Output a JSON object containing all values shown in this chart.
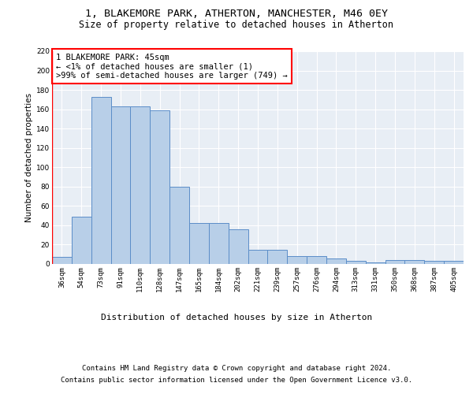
{
  "title1": "1, BLAKEMORE PARK, ATHERTON, MANCHESTER, M46 0EY",
  "title2": "Size of property relative to detached houses in Atherton",
  "xlabel": "Distribution of detached houses by size in Atherton",
  "ylabel": "Number of detached properties",
  "footnote1": "Contains HM Land Registry data © Crown copyright and database right 2024.",
  "footnote2": "Contains public sector information licensed under the Open Government Licence v3.0.",
  "bar_labels": [
    "36sqm",
    "54sqm",
    "73sqm",
    "91sqm",
    "110sqm",
    "128sqm",
    "147sqm",
    "165sqm",
    "184sqm",
    "202sqm",
    "221sqm",
    "239sqm",
    "257sqm",
    "276sqm",
    "294sqm",
    "313sqm",
    "331sqm",
    "350sqm",
    "368sqm",
    "387sqm",
    "405sqm"
  ],
  "bar_values": [
    7,
    49,
    173,
    163,
    163,
    159,
    80,
    42,
    42,
    36,
    15,
    15,
    8,
    8,
    6,
    3,
    2,
    4,
    4,
    3,
    3
  ],
  "bar_color": "#b8cfe8",
  "bar_edge_color": "#5b8dc8",
  "annotation_box_text": "1 BLAKEMORE PARK: 45sqm\n← <1% of detached houses are smaller (1)\n>99% of semi-detached houses are larger (749) →",
  "ylim": [
    0,
    220
  ],
  "yticks": [
    0,
    20,
    40,
    60,
    80,
    100,
    120,
    140,
    160,
    180,
    200,
    220
  ],
  "background_color": "#e8eef5",
  "grid_color": "#ffffff",
  "title1_fontsize": 9.5,
  "title2_fontsize": 8.5,
  "xlabel_fontsize": 8,
  "ylabel_fontsize": 7.5,
  "tick_fontsize": 6.5,
  "annotation_fontsize": 7.5,
  "footnote_fontsize": 6.5
}
